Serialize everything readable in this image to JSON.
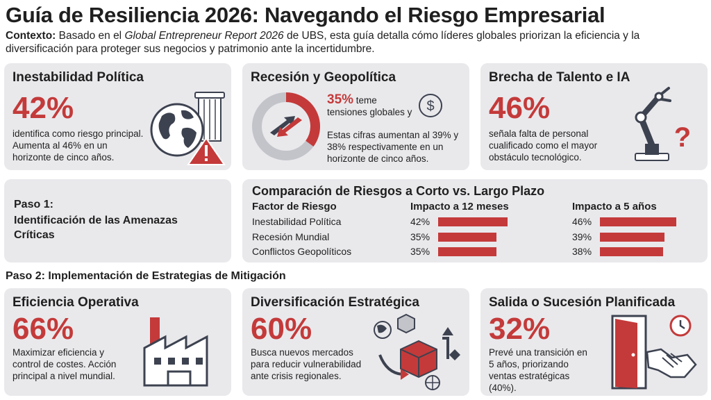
{
  "header": {
    "title": "Guía de Resiliencia 2026: Navegando el Riesgo Empresarial",
    "context_label": "Contexto:",
    "context_pre": "Basado en el",
    "context_italic": "Global Entrepreneur Report 2026",
    "context_post": "de UBS, esta guía detalla cómo líderes globales priorizan la eficiencia y la diversificación para proteger sus negocios y patrimonio ante la incertidumbre."
  },
  "cards": {
    "politica": {
      "title": "Inestabilidad Política",
      "stat": "42%",
      "desc": "identifica como riesgo principal. Aumenta al 46% en un horizonte de cinco años."
    },
    "recesion": {
      "title": "Recesión y Geopolítica",
      "stat": "35%",
      "stat_text": "teme tensiones globales y",
      "desc": "Estas cifras aumentan al 39% y 38% respectivamente en un horizonte de cinco años.",
      "donut_fraction": 0.35
    },
    "talento": {
      "title": "Brecha de Talento e IA",
      "stat": "46%",
      "desc": "señala falta de personal cualificado como el mayor obstáculo tecnológico."
    },
    "eficiencia": {
      "title": "Eficiencia Operativa",
      "stat": "66%",
      "desc": "Maximizar eficiencia y control de costes. Acción principal a nivel mundial."
    },
    "diversificacion": {
      "title": "Diversificación Estratégica",
      "stat": "60%",
      "desc": "Busca nuevos mercados para reducir vulnerabilidad ante crisis regionales."
    },
    "salida": {
      "title": "Salida o Sucesión Planificada",
      "stat": "32%",
      "desc": "Prevé una transición en 5 años, priorizando ventas estratégicas (40%)."
    }
  },
  "step1": {
    "label": "Paso 1:",
    "text": "Identificación de las Amenazas Críticas"
  },
  "step2": {
    "label": "Paso 2: Implementación de Estrategias de Mitigación"
  },
  "comparison": {
    "title": "Comparación de Riesgos a Corto vs. Largo Plazo",
    "col_factor": "Factor de Riesgo",
    "col_12m": "Impacto a 12 meses",
    "col_5y": "Impacto a 5 años",
    "rows": [
      {
        "factor": "Inestabilidad Política",
        "v12_label": "42%",
        "v5_label": "46%",
        "v12": 42,
        "v5": 46
      },
      {
        "factor": "Recesión Mundial",
        "v12_label": "35%",
        "v5_label": "39%",
        "v12": 35,
        "v5": 39
      },
      {
        "factor": "Conflictos Geopolíticos",
        "v12_label": "35%",
        "v5_label": "38%",
        "v12": 35,
        "v5": 38
      }
    ]
  },
  "colors": {
    "accent": "#c43a3a",
    "card_bg": "#e9e9ec",
    "icon_dark": "#3d4250"
  }
}
